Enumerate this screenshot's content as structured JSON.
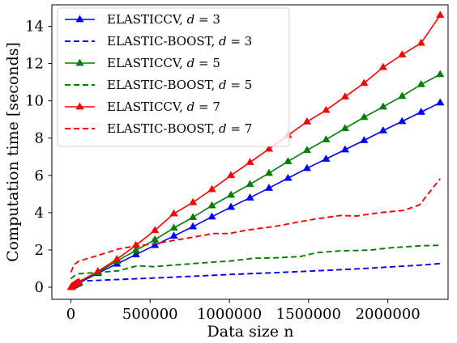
{
  "chart_data": {
    "type": "line",
    "title": "",
    "xlabel": "Data size n",
    "ylabel": "Computation time [seconds]",
    "xlim": [
      -120000,
      2380000
    ],
    "ylim": [
      -0.65,
      15.15
    ],
    "xticks": [
      0,
      500000,
      1000000,
      1500000,
      2000000
    ],
    "xtick_labels": [
      "0",
      "500000",
      "1000000",
      "1500000",
      "2000000"
    ],
    "yticks": [
      0,
      2,
      4,
      6,
      8,
      10,
      12,
      14
    ],
    "ytick_labels": [
      "0",
      "2",
      "4",
      "6",
      "8",
      "10",
      "12",
      "14"
    ],
    "grid": false,
    "legend_placement": "top-left",
    "series": [
      {
        "name": "ELASTICCV, d = 3",
        "legend_label": "ELASTICCV, ",
        "legend_math": "d = 3",
        "color": "#0000ff",
        "linestyle": "solid",
        "marker": "triangle",
        "x": [
          2000,
          5000,
          10000,
          20000,
          30000,
          40000,
          50000,
          170000,
          290000,
          410000,
          530000,
          650000,
          770000,
          890000,
          1010000,
          1130000,
          1250000,
          1370000,
          1490000,
          1610000,
          1730000,
          1850000,
          1970000,
          2090000,
          2210000,
          2330000
        ],
        "values": [
          0.0,
          0.02,
          0.05,
          0.1,
          0.15,
          0.18,
          0.22,
          0.75,
          1.25,
          1.75,
          2.25,
          2.75,
          3.25,
          3.78,
          4.3,
          4.8,
          5.32,
          5.85,
          6.38,
          6.88,
          7.38,
          7.88,
          8.4,
          8.9,
          9.4,
          9.9
        ]
      },
      {
        "name": "ELASTIC-BOOST, d = 3",
        "legend_label": "ELASTIC-BOOST, ",
        "legend_math": "d = 3",
        "color": "#0000ff",
        "linestyle": "dashed",
        "marker": "none",
        "x": [
          0,
          20000,
          50000,
          200000,
          400000,
          600000,
          800000,
          1000000,
          1200000,
          1400000,
          1600000,
          1800000,
          2000000,
          2200000,
          2330000
        ],
        "values": [
          0.05,
          0.22,
          0.32,
          0.38,
          0.45,
          0.52,
          0.6,
          0.68,
          0.75,
          0.82,
          0.9,
          0.98,
          1.08,
          1.18,
          1.27
        ]
      },
      {
        "name": "ELASTICCV, d = 5",
        "legend_label": "ELASTICCV, ",
        "legend_math": "d = 5",
        "color": "#008000",
        "linestyle": "solid",
        "marker": "triangle",
        "x": [
          2000,
          5000,
          10000,
          20000,
          30000,
          40000,
          50000,
          170000,
          290000,
          410000,
          530000,
          650000,
          770000,
          890000,
          1010000,
          1130000,
          1250000,
          1370000,
          1490000,
          1610000,
          1730000,
          1850000,
          1970000,
          2090000,
          2210000,
          2330000
        ],
        "values": [
          0.0,
          0.03,
          0.06,
          0.12,
          0.18,
          0.22,
          0.26,
          0.8,
          1.4,
          1.98,
          2.55,
          3.18,
          3.75,
          4.38,
          4.95,
          5.52,
          6.12,
          6.75,
          7.35,
          7.92,
          8.52,
          9.12,
          9.68,
          10.25,
          10.88,
          11.42
        ]
      },
      {
        "name": "ELASTIC-BOOST, d = 5",
        "legend_label": "ELASTIC-BOOST, ",
        "legend_math": "d = 5",
        "color": "#008000",
        "linestyle": "dashed",
        "marker": "none",
        "x": [
          0,
          20000,
          50000,
          150000,
          300000,
          420000,
          520000,
          700000,
          900000,
          1000000,
          1150000,
          1300000,
          1450000,
          1550000,
          1700000,
          1800000,
          1900000,
          2000000,
          2200000,
          2330000
        ],
        "values": [
          0.45,
          0.6,
          0.72,
          0.78,
          0.88,
          1.15,
          1.1,
          1.22,
          1.35,
          1.4,
          1.55,
          1.58,
          1.65,
          1.85,
          1.95,
          1.97,
          2.0,
          2.1,
          2.22,
          2.25
        ]
      },
      {
        "name": "ELASTICCV, d = 7",
        "legend_label": "ELASTICCV, ",
        "legend_math": "d = 7",
        "color": "#ff0000",
        "linestyle": "solid",
        "marker": "triangle",
        "x": [
          2000,
          5000,
          10000,
          20000,
          30000,
          40000,
          50000,
          170000,
          290000,
          410000,
          530000,
          650000,
          770000,
          890000,
          1010000,
          1130000,
          1250000,
          1370000,
          1490000,
          1610000,
          1730000,
          1850000,
          1970000,
          2090000,
          2210000,
          2330000
        ],
        "values": [
          0.0,
          0.03,
          0.07,
          0.13,
          0.19,
          0.24,
          0.29,
          0.85,
          1.5,
          2.25,
          3.05,
          3.95,
          4.55,
          5.25,
          6.0,
          6.7,
          7.42,
          8.15,
          8.88,
          9.5,
          10.22,
          10.95,
          11.8,
          12.48,
          13.1,
          14.6
        ]
      },
      {
        "name": "ELASTIC-BOOST, d = 7",
        "legend_label": "ELASTIC-BOOST, ",
        "legend_math": "d = 7",
        "color": "#ff0000",
        "linestyle": "dashed",
        "marker": "none",
        "x": [
          0,
          20000,
          50000,
          150000,
          300000,
          400000,
          500000,
          700000,
          900000,
          1000000,
          1100000,
          1300000,
          1500000,
          1700000,
          1800000,
          1950000,
          2100000,
          2200000,
          2330000
        ],
        "values": [
          0.8,
          1.2,
          1.4,
          1.65,
          2.05,
          2.2,
          2.3,
          2.58,
          2.88,
          2.88,
          3.05,
          3.28,
          3.6,
          3.85,
          3.82,
          4.0,
          4.12,
          4.42,
          5.82
        ]
      }
    ]
  }
}
